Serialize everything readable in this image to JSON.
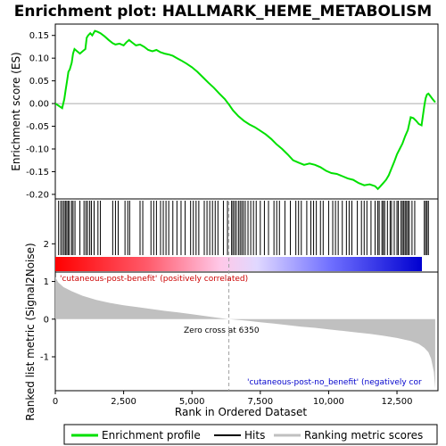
{
  "title": "Enrichment plot: HALLMARK_HEME_METABOLISM",
  "colors": {
    "enrichment": "#00e000",
    "hits": "#000000",
    "metric_fill": "#c0c0c0",
    "positive_label": "#cc0000",
    "negative_label": "#0000cc",
    "zero_line": "#a0a0a0"
  },
  "chart_data": {
    "type": "line",
    "title": "Enrichment plot: HALLMARK_HEME_METABOLISM",
    "es_panel": {
      "ylabel": "Enrichment score (ES)",
      "ylim": [
        -0.21,
        0.175
      ],
      "yticks": [
        0.15,
        0.1,
        0.05,
        0.0,
        -0.05,
        -0.1,
        -0.15,
        -0.2
      ],
      "ytick_labels": [
        "0.15",
        "0.10",
        "0.05",
        "0.00",
        "-0.05",
        "-0.10",
        "-0.15",
        "-0.20"
      ],
      "series": [
        {
          "name": "Enrichment profile",
          "x": [
            0,
            250,
            330,
            380,
            430,
            480,
            530,
            600,
            650,
            700,
            800,
            900,
            1000,
            1100,
            1150,
            1200,
            1280,
            1350,
            1450,
            1550,
            1650,
            1800,
            1950,
            2100,
            2200,
            2350,
            2500,
            2600,
            2700,
            2800,
            2950,
            3100,
            3250,
            3400,
            3550,
            3700,
            3850,
            4000,
            4150,
            4300,
            4450,
            4600,
            4800,
            5000,
            5200,
            5400,
            5600,
            5800,
            6000,
            6200,
            6350,
            6500,
            6700,
            6900,
            7100,
            7300,
            7500,
            7700,
            7900,
            8100,
            8300,
            8500,
            8700,
            8900,
            9100,
            9300,
            9500,
            9700,
            9900,
            10100,
            10300,
            10500,
            10700,
            10900,
            11100,
            11300,
            11500,
            11700,
            11800,
            11900,
            12000,
            12100,
            12200,
            12300,
            12400,
            12500,
            12600,
            12700,
            12800,
            12900,
            13000,
            13100,
            13200,
            13300,
            13400,
            13500,
            13550,
            13600,
            13650,
            13700,
            13800,
            13900
          ],
          "y": [
            0.0,
            -0.01,
            0.01,
            0.03,
            0.05,
            0.07,
            0.075,
            0.09,
            0.11,
            0.12,
            0.115,
            0.11,
            0.115,
            0.12,
            0.145,
            0.15,
            0.155,
            0.15,
            0.16,
            0.158,
            0.155,
            0.148,
            0.14,
            0.133,
            0.13,
            0.132,
            0.128,
            0.135,
            0.14,
            0.135,
            0.128,
            0.13,
            0.125,
            0.118,
            0.115,
            0.118,
            0.113,
            0.11,
            0.108,
            0.105,
            0.1,
            0.095,
            0.088,
            0.08,
            0.07,
            0.058,
            0.046,
            0.035,
            0.022,
            0.01,
            -0.002,
            -0.015,
            -0.028,
            -0.038,
            -0.046,
            -0.052,
            -0.06,
            -0.068,
            -0.078,
            -0.09,
            -0.1,
            -0.112,
            -0.125,
            -0.13,
            -0.135,
            -0.132,
            -0.135,
            -0.14,
            -0.148,
            -0.153,
            -0.155,
            -0.16,
            -0.165,
            -0.168,
            -0.175,
            -0.18,
            -0.178,
            -0.182,
            -0.188,
            -0.182,
            -0.175,
            -0.168,
            -0.158,
            -0.143,
            -0.128,
            -0.112,
            -0.1,
            -0.088,
            -0.072,
            -0.058,
            -0.03,
            -0.032,
            -0.038,
            -0.045,
            -0.048,
            -0.005,
            0.012,
            0.02,
            0.022,
            0.018,
            0.01,
            0.003
          ]
        }
      ]
    },
    "hits": [
      120,
      200,
      260,
      320,
      370,
      420,
      470,
      520,
      600,
      650,
      720,
      900,
      1050,
      1120,
      1180,
      1260,
      1320,
      1420,
      1560,
      1650,
      2100,
      2200,
      2300,
      2550,
      2650,
      2720,
      3100,
      3200,
      3500,
      3600,
      3700,
      3850,
      3950,
      4050,
      4150,
      4300,
      4450,
      4600,
      4750,
      4950,
      5050,
      5150,
      5250,
      5450,
      5550,
      5650,
      5750,
      5850,
      5950,
      6150,
      6300,
      6450,
      6500,
      6560,
      6620,
      6700,
      6760,
      6820,
      6880,
      6950,
      7050,
      7150,
      7250,
      7350,
      7500,
      7650,
      7800,
      8000,
      8100,
      8200,
      8400,
      8600,
      8800,
      8900,
      9000,
      9200,
      9350,
      9450,
      9550,
      9700,
      9800,
      10000,
      10150,
      10250,
      10350,
      10500,
      10650,
      10750,
      10850,
      11050,
      11200,
      11300,
      11400,
      11550,
      11700,
      11800,
      11850,
      11950,
      12000,
      12050,
      12150,
      12250,
      12300,
      12400,
      12500,
      12550,
      12650,
      12700,
      12750,
      12800,
      12850,
      12900,
      12950,
      13050,
      13150,
      13500,
      13550,
      13600,
      13650
    ],
    "metric_panel": {
      "ylabel": "Ranked list metric (Signal2Noise)",
      "ylim": [
        -1.9,
        1.25
      ],
      "yticks": [
        2,
        1,
        0,
        -1
      ],
      "ytick_labels": [
        "2",
        "1",
        "0",
        "-1"
      ],
      "x": [
        0,
        100,
        300,
        600,
        1000,
        1500,
        2000,
        2500,
        3000,
        3500,
        4000,
        4500,
        5000,
        5500,
        6000,
        6350,
        7000,
        7500,
        8000,
        8500,
        9000,
        9500,
        10000,
        10500,
        11000,
        11500,
        12000,
        12500,
        13000,
        13300,
        13500,
        13650,
        13750,
        13850,
        13900
      ],
      "values": [
        1.12,
        0.98,
        0.85,
        0.74,
        0.62,
        0.51,
        0.43,
        0.37,
        0.32,
        0.27,
        0.22,
        0.18,
        0.13,
        0.08,
        0.03,
        0.0,
        -0.04,
        -0.08,
        -0.12,
        -0.16,
        -0.2,
        -0.23,
        -0.27,
        -0.31,
        -0.35,
        -0.39,
        -0.44,
        -0.5,
        -0.58,
        -0.66,
        -0.76,
        -0.88,
        -1.05,
        -1.4,
        -1.85
      ]
    },
    "xlabel": "Rank in Ordered Dataset",
    "xlim": [
      0,
      14000
    ],
    "xticks": [
      0,
      2500,
      5000,
      7500,
      10000,
      12500
    ],
    "xtick_labels": [
      "0",
      "2,500",
      "5,000",
      "7,500",
      "10,000",
      "12,500"
    ],
    "zero_cross": 6350,
    "zero_cross_label": "Zero cross at 6350",
    "positive_label": "'cutaneous-post-benefit' (positively correlated)",
    "negative_label": "'cutaneous-post-no_benefit' (negatively cor",
    "legend": [
      {
        "name": "Enrichment profile",
        "color": "#00e000"
      },
      {
        "name": "Hits",
        "color": "#000000"
      },
      {
        "name": "Ranking metric scores",
        "color": "#c0c0c0"
      }
    ],
    "legend_position": "bottom"
  }
}
